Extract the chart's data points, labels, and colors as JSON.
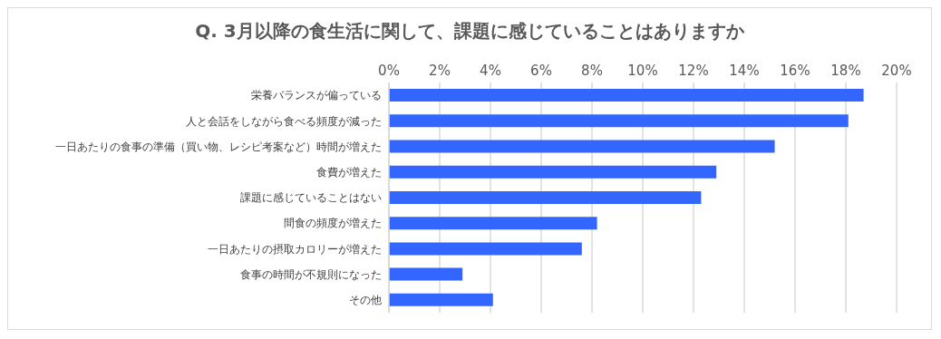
{
  "chart_data": {
    "type": "bar",
    "orientation": "horizontal",
    "title": "Q. 3月以降の食生活に関して、課題に感じていることはありますか",
    "categories": [
      "栄養バランスが偏っている",
      "人と会話をしながら食べる頻度が減った",
      "一日あたりの食事の準備（買い物、レシピ考案など）時間が増えた",
      "食費が増えた",
      "課題に感じていることはない",
      "間食の頻度が増えた",
      "一日あたりの摂取カロリーが増えた",
      "食事の時間が不規則になった",
      "その他"
    ],
    "values": [
      18.7,
      18.1,
      15.2,
      12.9,
      12.3,
      8.2,
      7.6,
      2.9,
      4.1
    ],
    "color": "#3366ff",
    "xlim": [
      0,
      20
    ],
    "xticks": [
      {
        "value": 0,
        "label": "0%"
      },
      {
        "value": 2,
        "label": "2%"
      },
      {
        "value": 4,
        "label": "4%"
      },
      {
        "value": 6,
        "label": "6%"
      },
      {
        "value": 8,
        "label": "8%"
      },
      {
        "value": 10,
        "label": "10%"
      },
      {
        "value": 12,
        "label": "12%"
      },
      {
        "value": 14,
        "label": "14%"
      },
      {
        "value": 16,
        "label": "16%"
      },
      {
        "value": 18,
        "label": "18%"
      },
      {
        "value": 20,
        "label": "20%"
      }
    ],
    "grid": "x"
  }
}
